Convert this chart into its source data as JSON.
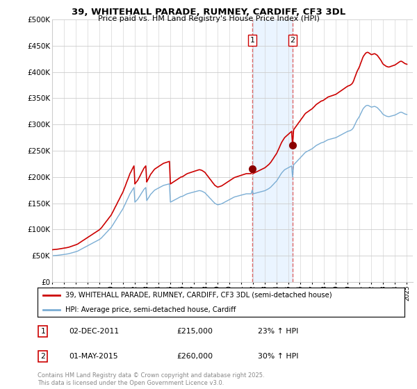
{
  "title_line1": "39, WHITEHALL PARADE, RUMNEY, CARDIFF, CF3 3DL",
  "title_line2": "Price paid vs. HM Land Registry's House Price Index (HPI)",
  "red_label": "39, WHITEHALL PARADE, RUMNEY, CARDIFF, CF3 3DL (semi-detached house)",
  "blue_label": "HPI: Average price, semi-detached house, Cardiff",
  "footer": "Contains HM Land Registry data © Crown copyright and database right 2025.\nThis data is licensed under the Open Government Licence v3.0.",
  "annotation1": {
    "num": "1",
    "date": "02-DEC-2011",
    "price": "£215,000",
    "change": "23% ↑ HPI"
  },
  "annotation2": {
    "num": "2",
    "date": "01-MAY-2015",
    "price": "£260,000",
    "change": "30% ↑ HPI"
  },
  "sale1_x": 2011.92,
  "sale1_y": 215000,
  "sale2_x": 2015.33,
  "sale2_y": 260000,
  "vline1_x": 2011.92,
  "vline2_x": 2015.33,
  "ylim": [
    0,
    500000
  ],
  "xlim": [
    1995.0,
    2025.5
  ],
  "background_color": "#ffffff",
  "grid_color": "#cccccc",
  "red_color": "#cc0000",
  "blue_color": "#7aadd4",
  "sale_dot_color": "#8b0000",
  "vline_color": "#dd6666",
  "vline_fill": "#ddeeff"
}
